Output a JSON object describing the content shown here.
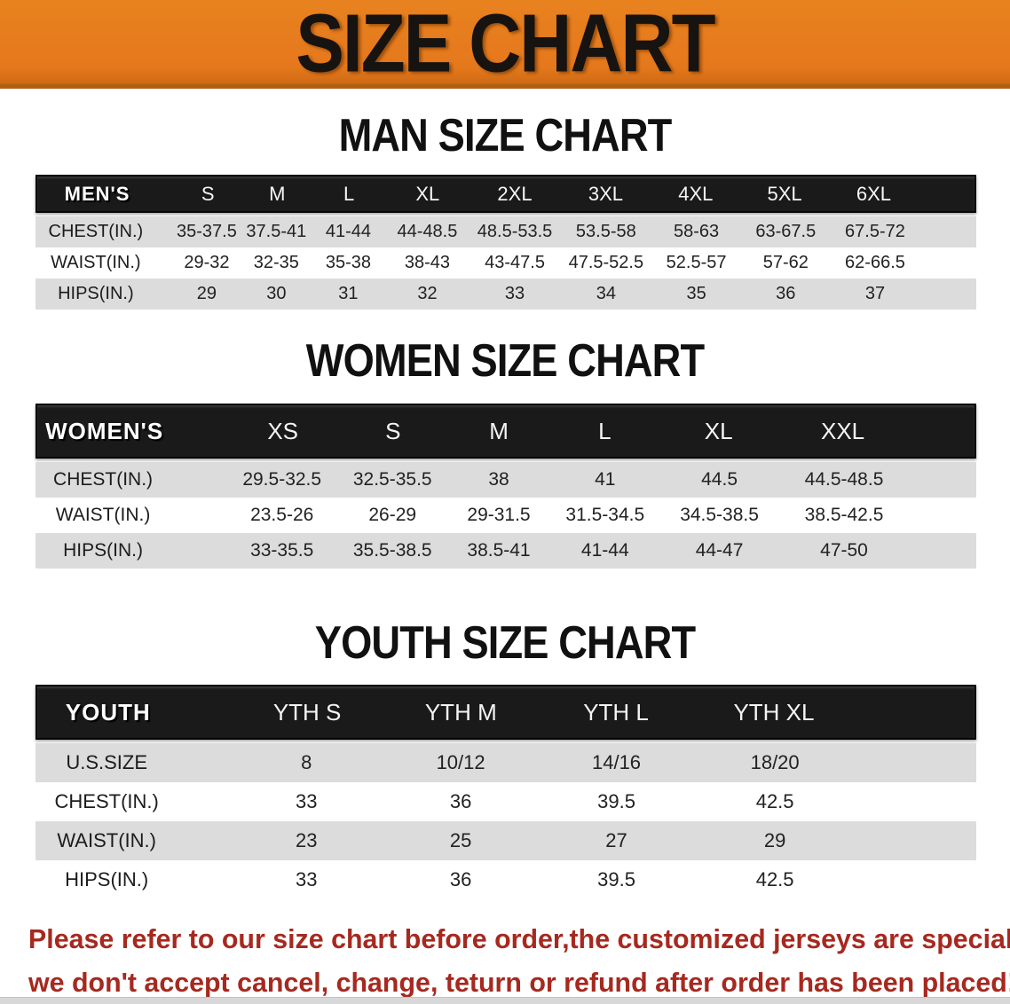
{
  "banner": {
    "title": "SIZE CHART",
    "bg_color": "#e5781c",
    "text_color": "#161310"
  },
  "sections": [
    {
      "heading": "MAN SIZE CHART",
      "header_label": "MEN'S",
      "columns": [
        "S",
        "M",
        "L",
        "XL",
        "2XL",
        "3XL",
        "4XL",
        "5XL",
        "6XL"
      ],
      "rows": [
        {
          "label": "CHEST(IN.)",
          "values": [
            "35-37.5",
            "37.5-41",
            "41-44",
            "44-48.5",
            "48.5-53.5",
            "53.5-58",
            "58-63",
            "63-67.5",
            "67.5-72"
          ]
        },
        {
          "label": "WAIST(IN.)",
          "values": [
            "29-32",
            "32-35",
            "35-38",
            "38-43",
            "43-47.5",
            "47.5-52.5",
            "52.5-57",
            "57-62",
            "62-66.5"
          ]
        },
        {
          "label": "HIPS(IN.)",
          "values": [
            "29",
            "30",
            "31",
            "32",
            "33",
            "34",
            "35",
            "36",
            "37"
          ]
        }
      ]
    },
    {
      "heading": "WOMEN SIZE CHART",
      "header_label": "WOMEN'S",
      "columns": [
        "XS",
        "S",
        "M",
        "L",
        "XL",
        "XXL"
      ],
      "rows": [
        {
          "label": "CHEST(IN.)",
          "values": [
            "29.5-32.5",
            "32.5-35.5",
            "38",
            "41",
            "44.5",
            "44.5-48.5"
          ]
        },
        {
          "label": "WAIST(IN.)",
          "values": [
            "23.5-26",
            "26-29",
            "29-31.5",
            "31.5-34.5",
            "34.5-38.5",
            "38.5-42.5"
          ]
        },
        {
          "label": "HIPS(IN.)",
          "values": [
            "33-35.5",
            "35.5-38.5",
            "38.5-41",
            "41-44",
            "44-47",
            "47-50"
          ]
        }
      ]
    },
    {
      "heading": "YOUTH SIZE CHART",
      "header_label": "YOUTH",
      "columns": [
        "YTH S",
        "YTH M",
        "YTH L",
        "YTH XL"
      ],
      "rows": [
        {
          "label": "U.S.SIZE",
          "values": [
            "8",
            "10/12",
            "14/16",
            "18/20"
          ]
        },
        {
          "label": "CHEST(IN.)",
          "values": [
            "33",
            "36",
            "39.5",
            "42.5"
          ]
        },
        {
          "label": "WAIST(IN.)",
          "values": [
            "23",
            "25",
            "27",
            "29"
          ]
        },
        {
          "label": "HIPS(IN.)",
          "values": [
            "33",
            "36",
            "39.5",
            "42.5"
          ]
        }
      ]
    }
  ],
  "table_colors": {
    "header_bar_bg": "#1a1a1a",
    "header_text": "#ffffff",
    "row_stripe_gray": "#dcdcdc",
    "row_stripe_white": "#ffffff",
    "value_text": "#222222"
  },
  "disclaimer": {
    "line1": "Please refer to our size chart before order,the customized jerseys are special products,",
    "line2": "we don't accept cancel, change, teturn or refund after order has been placed!",
    "color": "#a6291f"
  }
}
